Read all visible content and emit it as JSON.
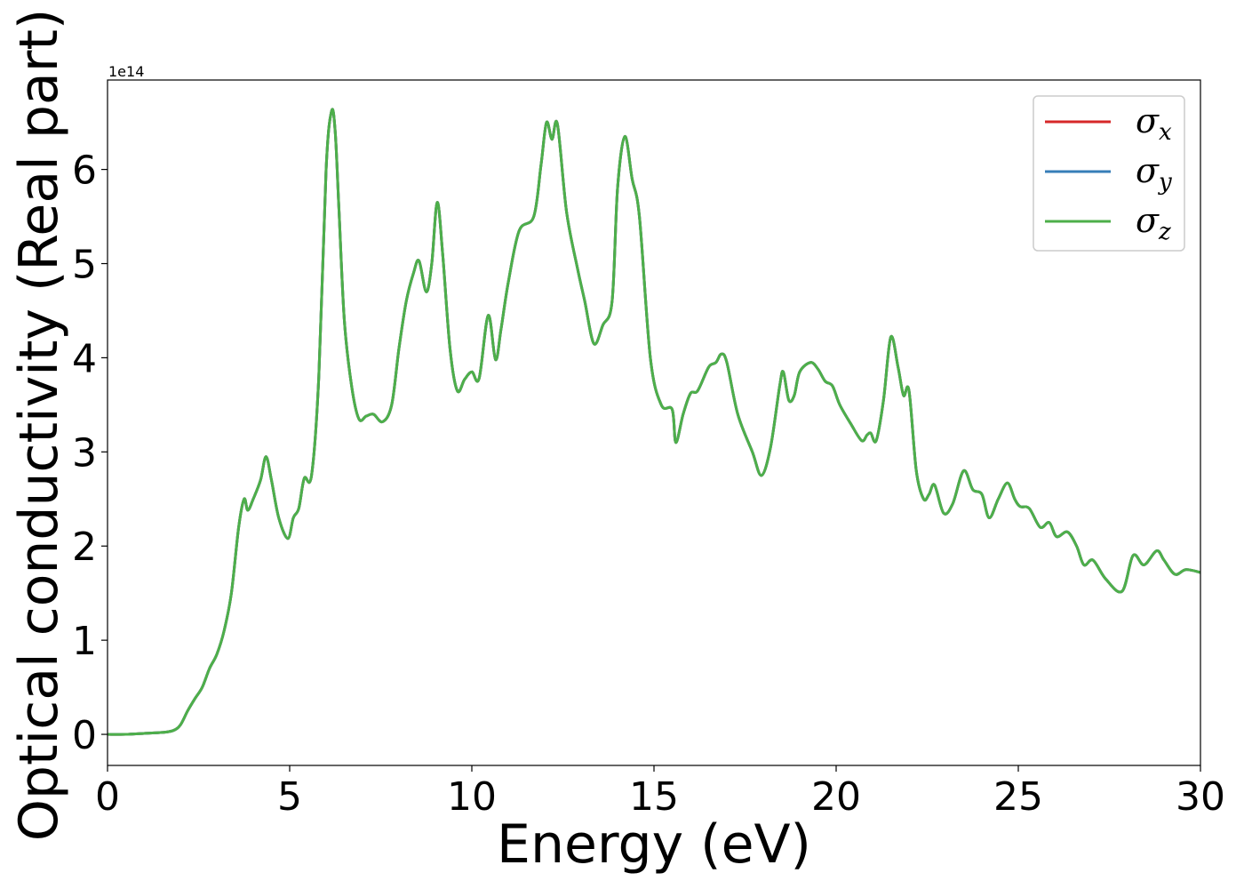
{
  "chart_data": {
    "type": "line",
    "xlabel": "Energy (eV)",
    "ylabel": "Optical conductivity (Real part)",
    "y_offset_label": "1e14",
    "y_scale_factor": 100000000000000.0,
    "xlim": [
      0,
      30
    ],
    "ylim": [
      -0.33,
      6.95
    ],
    "x_ticks": [
      0,
      5,
      10,
      15,
      20,
      25,
      30
    ],
    "x_tick_labels": [
      "0",
      "5",
      "10",
      "15",
      "20",
      "25",
      "30"
    ],
    "y_ticks": [
      0,
      1,
      2,
      3,
      4,
      5,
      6
    ],
    "y_tick_labels": [
      "0",
      "1",
      "2",
      "3",
      "4",
      "5",
      "6"
    ],
    "grid": false,
    "legend_position": "top-right",
    "x": [
      0,
      0.5,
      1.0,
      1.5,
      1.8,
      2.0,
      2.2,
      2.4,
      2.6,
      2.8,
      3.0,
      3.2,
      3.4,
      3.6,
      3.75,
      3.85,
      4.0,
      4.2,
      4.35,
      4.5,
      4.7,
      4.95,
      5.1,
      5.25,
      5.4,
      5.6,
      5.8,
      6.0,
      6.15,
      6.25,
      6.35,
      6.5,
      6.7,
      6.9,
      7.1,
      7.3,
      7.55,
      7.8,
      8.0,
      8.2,
      8.4,
      8.55,
      8.75,
      8.9,
      9.05,
      9.2,
      9.4,
      9.6,
      9.8,
      10.0,
      10.2,
      10.45,
      10.65,
      10.8,
      11.0,
      11.3,
      11.7,
      11.9,
      12.05,
      12.2,
      12.35,
      12.6,
      12.9,
      13.1,
      13.35,
      13.6,
      13.85,
      14.0,
      14.2,
      14.4,
      14.6,
      14.9,
      15.2,
      15.5,
      15.6,
      15.8,
      16.0,
      16.2,
      16.5,
      16.7,
      16.85,
      17.0,
      17.3,
      17.7,
      17.95,
      18.2,
      18.45,
      18.55,
      18.7,
      18.85,
      19.0,
      19.3,
      19.5,
      19.7,
      19.9,
      20.1,
      20.4,
      20.7,
      20.85,
      20.95,
      21.1,
      21.3,
      21.5,
      21.7,
      21.85,
      22.0,
      22.2,
      22.4,
      22.55,
      22.7,
      22.95,
      23.2,
      23.5,
      23.75,
      24.0,
      24.2,
      24.45,
      24.7,
      24.9,
      25.05,
      25.3,
      25.6,
      25.85,
      26.05,
      26.35,
      26.6,
      26.8,
      27.05,
      27.4,
      27.85,
      28.15,
      28.45,
      28.8,
      29.0,
      29.3,
      29.6,
      30.0
    ],
    "series": [
      {
        "name": "σ_x",
        "color": "#d62728",
        "values": [
          0,
          0,
          0.01,
          0.02,
          0.04,
          0.1,
          0.25,
          0.38,
          0.5,
          0.7,
          0.85,
          1.1,
          1.5,
          2.2,
          2.5,
          2.38,
          2.5,
          2.7,
          2.95,
          2.7,
          2.3,
          2.08,
          2.3,
          2.4,
          2.72,
          2.75,
          3.8,
          6.0,
          6.62,
          6.4,
          5.6,
          4.4,
          3.7,
          3.35,
          3.38,
          3.4,
          3.32,
          3.5,
          4.1,
          4.6,
          4.9,
          5.03,
          4.7,
          5.0,
          5.65,
          5.1,
          4.1,
          3.65,
          3.77,
          3.85,
          3.78,
          4.45,
          3.98,
          4.3,
          4.8,
          5.35,
          5.5,
          6.05,
          6.5,
          6.32,
          6.48,
          5.55,
          4.95,
          4.6,
          4.15,
          4.35,
          4.6,
          5.8,
          6.35,
          5.9,
          5.5,
          4.0,
          3.5,
          3.45,
          3.1,
          3.4,
          3.62,
          3.65,
          3.9,
          3.95,
          4.04,
          3.95,
          3.4,
          3.0,
          2.75,
          3.05,
          3.7,
          3.85,
          3.55,
          3.6,
          3.85,
          3.95,
          3.88,
          3.75,
          3.7,
          3.5,
          3.3,
          3.12,
          3.18,
          3.2,
          3.12,
          3.55,
          4.22,
          3.9,
          3.6,
          3.65,
          2.8,
          2.5,
          2.55,
          2.65,
          2.35,
          2.45,
          2.8,
          2.6,
          2.55,
          2.3,
          2.5,
          2.67,
          2.5,
          2.42,
          2.4,
          2.2,
          2.25,
          2.1,
          2.15,
          2.0,
          1.8,
          1.85,
          1.65,
          1.52,
          1.9,
          1.8,
          1.95,
          1.85,
          1.7,
          1.75,
          1.72
        ]
      },
      {
        "name": "σ_y",
        "color": "#377eb8",
        "values": [
          0,
          0,
          0.01,
          0.02,
          0.04,
          0.1,
          0.25,
          0.38,
          0.5,
          0.7,
          0.85,
          1.1,
          1.5,
          2.2,
          2.5,
          2.38,
          2.5,
          2.7,
          2.95,
          2.7,
          2.3,
          2.08,
          2.3,
          2.4,
          2.72,
          2.75,
          3.8,
          6.0,
          6.62,
          6.4,
          5.6,
          4.4,
          3.7,
          3.35,
          3.38,
          3.4,
          3.32,
          3.5,
          4.1,
          4.6,
          4.9,
          5.03,
          4.7,
          5.0,
          5.65,
          5.1,
          4.1,
          3.65,
          3.77,
          3.85,
          3.78,
          4.45,
          3.98,
          4.3,
          4.8,
          5.35,
          5.5,
          6.05,
          6.5,
          6.32,
          6.48,
          5.55,
          4.95,
          4.6,
          4.15,
          4.35,
          4.6,
          5.8,
          6.35,
          5.9,
          5.5,
          4.0,
          3.5,
          3.45,
          3.1,
          3.4,
          3.62,
          3.65,
          3.9,
          3.95,
          4.04,
          3.95,
          3.4,
          3.0,
          2.75,
          3.05,
          3.7,
          3.85,
          3.55,
          3.6,
          3.85,
          3.95,
          3.88,
          3.75,
          3.7,
          3.5,
          3.3,
          3.12,
          3.18,
          3.2,
          3.12,
          3.55,
          4.22,
          3.9,
          3.6,
          3.65,
          2.8,
          2.5,
          2.55,
          2.65,
          2.35,
          2.45,
          2.8,
          2.6,
          2.55,
          2.3,
          2.5,
          2.67,
          2.5,
          2.42,
          2.4,
          2.2,
          2.25,
          2.1,
          2.15,
          2.0,
          1.8,
          1.85,
          1.65,
          1.52,
          1.9,
          1.8,
          1.95,
          1.85,
          1.7,
          1.75,
          1.72
        ]
      },
      {
        "name": "σ_z",
        "color": "#4daf4a",
        "values": [
          0,
          0,
          0.01,
          0.02,
          0.04,
          0.1,
          0.25,
          0.38,
          0.5,
          0.7,
          0.85,
          1.1,
          1.5,
          2.2,
          2.5,
          2.38,
          2.5,
          2.7,
          2.95,
          2.7,
          2.3,
          2.08,
          2.3,
          2.4,
          2.72,
          2.75,
          3.8,
          6.0,
          6.62,
          6.4,
          5.6,
          4.4,
          3.7,
          3.35,
          3.38,
          3.4,
          3.32,
          3.5,
          4.1,
          4.6,
          4.9,
          5.03,
          4.7,
          5.0,
          5.65,
          5.1,
          4.1,
          3.65,
          3.77,
          3.85,
          3.78,
          4.45,
          3.98,
          4.3,
          4.8,
          5.35,
          5.5,
          6.05,
          6.5,
          6.32,
          6.48,
          5.55,
          4.95,
          4.6,
          4.15,
          4.35,
          4.6,
          5.8,
          6.35,
          5.9,
          5.5,
          4.0,
          3.5,
          3.45,
          3.1,
          3.4,
          3.62,
          3.65,
          3.9,
          3.95,
          4.04,
          3.95,
          3.4,
          3.0,
          2.75,
          3.05,
          3.7,
          3.85,
          3.55,
          3.6,
          3.85,
          3.95,
          3.88,
          3.75,
          3.7,
          3.5,
          3.3,
          3.12,
          3.18,
          3.2,
          3.12,
          3.55,
          4.22,
          3.9,
          3.6,
          3.65,
          2.8,
          2.5,
          2.55,
          2.65,
          2.35,
          2.45,
          2.8,
          2.6,
          2.55,
          2.3,
          2.5,
          2.67,
          2.5,
          2.42,
          2.4,
          2.2,
          2.25,
          2.1,
          2.15,
          2.0,
          1.8,
          1.85,
          1.65,
          1.52,
          1.9,
          1.8,
          1.95,
          1.85,
          1.7,
          1.75,
          1.72
        ]
      }
    ],
    "legend": [
      {
        "symbol": "σ",
        "sub": "x",
        "color": "#d62728"
      },
      {
        "symbol": "σ",
        "sub": "y",
        "color": "#377eb8"
      },
      {
        "symbol": "σ",
        "sub": "z",
        "color": "#4daf4a"
      }
    ]
  }
}
